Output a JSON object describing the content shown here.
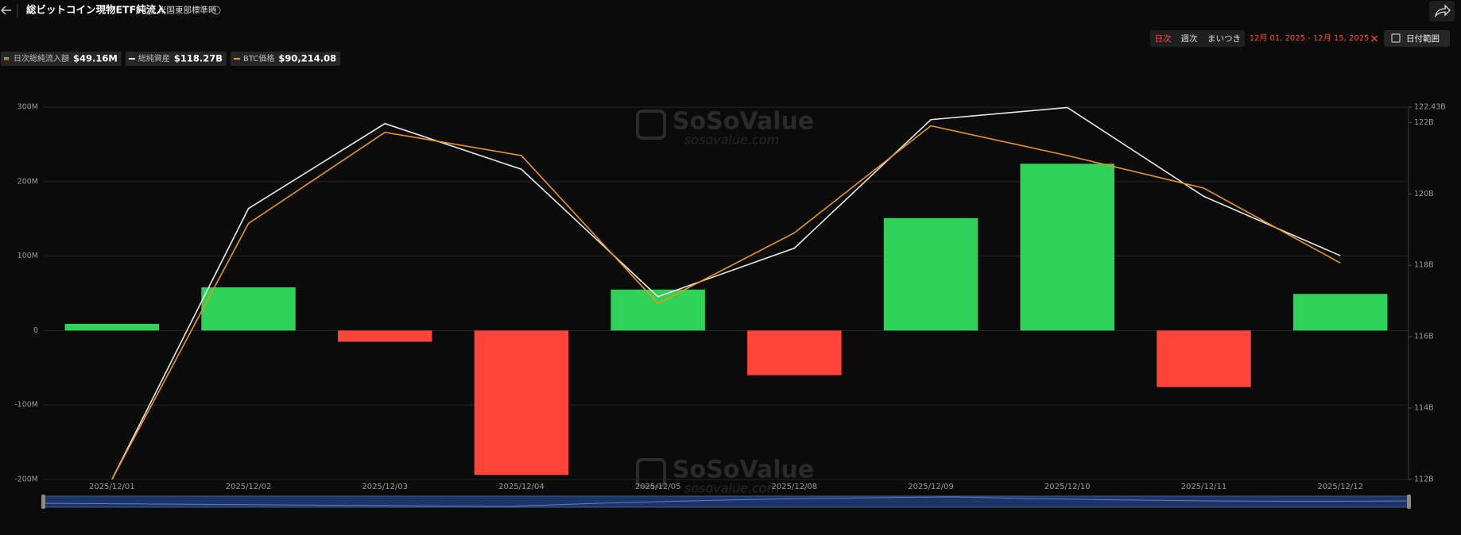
{
  "header": {
    "title": "総ビットコイン現物ETF純流入",
    "timezone": "米国東部標準時"
  },
  "controls": {
    "periods": [
      "日次",
      "週次",
      "まいつき"
    ],
    "active_period": 0,
    "date_range": "12月 01, 2025 - 12月 15, 2025",
    "clear": "×",
    "date_button": "日付範囲"
  },
  "chart_data": {
    "type": "bar",
    "categories": [
      "2025/12/01",
      "2025/12/02",
      "2025/12/03",
      "2025/12/04",
      "2025/12/05",
      "2025/12/08",
      "2025/12/09",
      "2025/12/10",
      "2025/12/11",
      "2025/12/12"
    ],
    "series": [
      {
        "name": "日次総純流入額",
        "legend_value": "$49.16M",
        "type": "bar",
        "color": "#30d158",
        "negative_color": "#ff453a",
        "values": [
          9,
          58,
          -15,
          -194,
          55,
          -60,
          151,
          224,
          -76,
          49.16
        ]
      },
      {
        "name": "総純資産",
        "legend_value": "$118.27B",
        "type": "line",
        "axis": "y2",
        "color": "#e8e8e8",
        "values": [
          112,
          119.59,
          121.97,
          120.69,
          117.12,
          118.48,
          122.08,
          122.42,
          119.93,
          118.27
        ]
      },
      {
        "name": "BTC価格",
        "legend_value": "$90,214.08",
        "type": "line",
        "axis": "y3",
        "color": "#e8961e",
        "values": [
          84400,
          91275,
          93725,
          93100,
          89125,
          91025,
          93900,
          93100,
          92225,
          90214.08
        ]
      }
    ],
    "ylim": [
      -200,
      300
    ],
    "yticks": [
      {
        "value": -200,
        "label": "-200M"
      },
      {
        "value": -100,
        "label": "-100M"
      },
      0,
      {
        "value": 100,
        "label": "100M"
      },
      {
        "value": 200,
        "label": "200M"
      },
      {
        "value": 300,
        "label": "300M"
      }
    ],
    "y2lim": [
      112,
      122.43
    ],
    "y2ticks": [
      {
        "value": 112,
        "label": "112B"
      },
      {
        "value": 114,
        "label": "114B"
      },
      {
        "value": 116,
        "label": "116B"
      },
      {
        "value": 118,
        "label": "118B"
      },
      {
        "value": 120,
        "label": "120B"
      },
      {
        "value": 122,
        "label": "122B"
      },
      {
        "value": 122.43,
        "label": "122.43B"
      }
    ],
    "y3lim": [
      84400,
      94400
    ],
    "grid": true,
    "watermark": {
      "brand": "SoSoValue",
      "url": "sosovalue.com"
    }
  }
}
